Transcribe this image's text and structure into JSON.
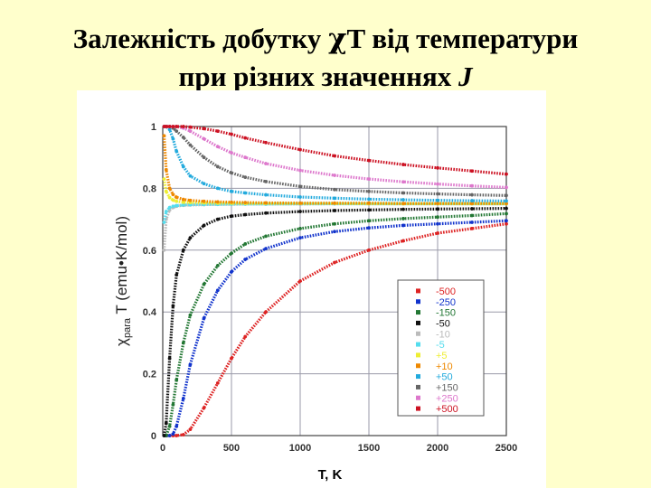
{
  "slide": {
    "title_line1_part1": "Залежність добутку ",
    "title_chi": "χ",
    "title_line1_part2": "T від температури",
    "title_line2_part1": "при різних значеннях ",
    "title_line2_j": "J"
  },
  "chart_data": {
    "type": "scatter",
    "xlabel": "T, K",
    "ylabel": "χ",
    "ylabel_sub": "para",
    "ylabel_rest": "T (emu•K/mol)",
    "xlim": [
      0,
      2500
    ],
    "ylim": [
      0,
      1
    ],
    "xticks": [
      0,
      500,
      1000,
      1500,
      2000,
      2500
    ],
    "yticks": [
      0,
      0.2,
      0.4,
      0.6,
      0.8,
      1
    ],
    "ytick_labels": [
      "0",
      "0.2",
      "0.4",
      "0.6",
      "0.8",
      "1"
    ],
    "grid": true,
    "legend_position": "bottom-right",
    "x": [
      10,
      25,
      50,
      75,
      100,
      150,
      200,
      300,
      400,
      500,
      600,
      750,
      1000,
      1250,
      1500,
      1750,
      2000,
      2250,
      2500
    ],
    "series": [
      {
        "name": "-500",
        "color": "#dd2222",
        "values": [
          0,
          0,
          0,
          0,
          0,
          0.003,
          0.02,
          0.09,
          0.17,
          0.25,
          0.32,
          0.4,
          0.5,
          0.56,
          0.6,
          0.63,
          0.655,
          0.67,
          0.685
        ]
      },
      {
        "name": "-250",
        "color": "#1133cc",
        "values": [
          0,
          0,
          0,
          0.005,
          0.03,
          0.12,
          0.23,
          0.38,
          0.47,
          0.53,
          0.57,
          0.605,
          0.64,
          0.66,
          0.672,
          0.68,
          0.685,
          0.69,
          0.695
        ]
      },
      {
        "name": "-150",
        "color": "#227733",
        "values": [
          0,
          0,
          0.03,
          0.1,
          0.18,
          0.3,
          0.39,
          0.49,
          0.55,
          0.59,
          0.62,
          0.645,
          0.67,
          0.685,
          0.695,
          0.702,
          0.707,
          0.712,
          0.718
        ]
      },
      {
        "name": "-50",
        "color": "#111111",
        "values": [
          0,
          0.04,
          0.25,
          0.42,
          0.52,
          0.6,
          0.64,
          0.68,
          0.7,
          0.71,
          0.715,
          0.72,
          0.725,
          0.728,
          0.73,
          0.732,
          0.733,
          0.734,
          0.735
        ]
      },
      {
        "name": "-10",
        "color": "#bbbbbb",
        "values": [
          0.6,
          0.7,
          0.73,
          0.738,
          0.742,
          0.745,
          0.746,
          0.747,
          0.748,
          0.748,
          0.749,
          0.749,
          0.749,
          0.75,
          0.75,
          0.75,
          0.75,
          0.75,
          0.75
        ]
      },
      {
        "name": "-5",
        "color": "#55ddee",
        "values": [
          0.69,
          0.725,
          0.738,
          0.742,
          0.744,
          0.746,
          0.747,
          0.748,
          0.748,
          0.749,
          0.749,
          0.749,
          0.75,
          0.75,
          0.75,
          0.75,
          0.75,
          0.75,
          0.75
        ]
      },
      {
        "name": "+5",
        "color": "#eeee33",
        "values": [
          0.83,
          0.79,
          0.77,
          0.762,
          0.758,
          0.755,
          0.754,
          0.753,
          0.752,
          0.752,
          0.751,
          0.751,
          0.751,
          0.751,
          0.75,
          0.75,
          0.75,
          0.75,
          0.75
        ]
      },
      {
        "name": "+10",
        "color": "#ee8800",
        "values": [
          0.97,
          0.86,
          0.8,
          0.78,
          0.771,
          0.764,
          0.761,
          0.758,
          0.756,
          0.755,
          0.754,
          0.753,
          0.752,
          0.752,
          0.752,
          0.751,
          0.751,
          0.751,
          0.751
        ]
      },
      {
        "name": "+50",
        "color": "#22aadd",
        "values": [
          1.0,
          1.0,
          0.99,
          0.96,
          0.92,
          0.87,
          0.84,
          0.815,
          0.8,
          0.79,
          0.785,
          0.779,
          0.772,
          0.768,
          0.765,
          0.763,
          0.761,
          0.76,
          0.759
        ]
      },
      {
        "name": "+150",
        "color": "#666666",
        "values": [
          1.0,
          1.0,
          1.0,
          0.995,
          0.985,
          0.965,
          0.94,
          0.9,
          0.87,
          0.85,
          0.836,
          0.822,
          0.806,
          0.796,
          0.79,
          0.785,
          0.782,
          0.779,
          0.777
        ]
      },
      {
        "name": "+250",
        "color": "#dd77cc",
        "values": [
          1.0,
          1.0,
          1.0,
          1.0,
          1.0,
          0.995,
          0.985,
          0.96,
          0.935,
          0.915,
          0.9,
          0.88,
          0.858,
          0.842,
          0.83,
          0.821,
          0.814,
          0.808,
          0.803
        ]
      },
      {
        "name": "+500",
        "color": "#cc1122",
        "values": [
          1.0,
          1.0,
          1.0,
          1.0,
          1.0,
          1.0,
          0.998,
          0.993,
          0.985,
          0.975,
          0.963,
          0.948,
          0.925,
          0.905,
          0.89,
          0.877,
          0.866,
          0.856,
          0.846
        ]
      }
    ]
  }
}
